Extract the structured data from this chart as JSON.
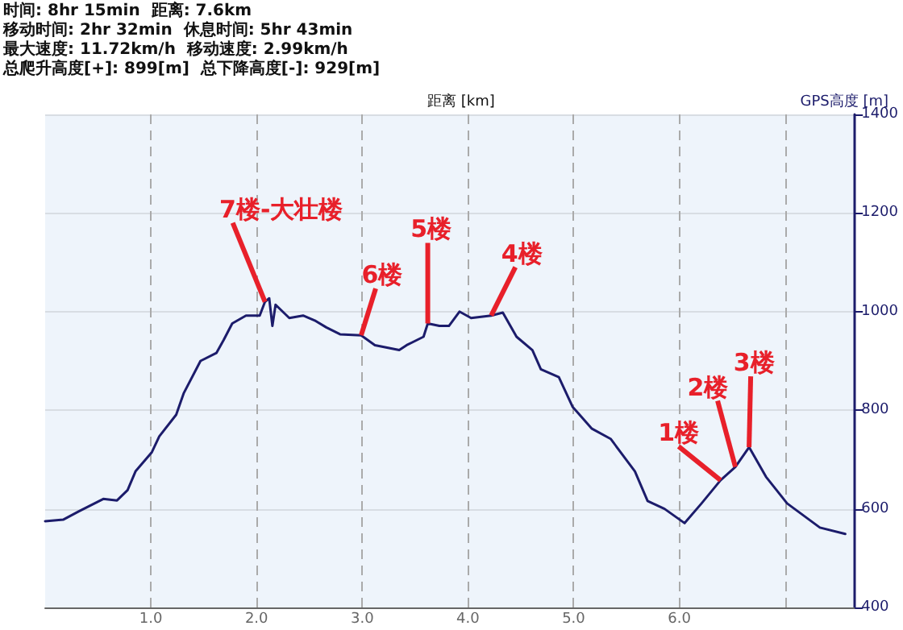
{
  "chart_data": {
    "type": "line",
    "xlabel": "距离 [km]",
    "ylabel": "GPS高度 [m]",
    "annotations": [
      "时间: 8hr 15min  距离: 7.6km",
      "移动时间: 2hr 32min  休息时间: 5hr 43min",
      "最大速度: 11.72km/h  移动速度: 2.99km/h",
      "总爬升高度[+]: 899[m]  总下降高度[-]: 929[m]",
      {
        "text": "7楼-大壮楼",
        "x": 2.08,
        "y": 1020
      },
      {
        "text": "6楼",
        "x": 2.99,
        "y": 952
      },
      {
        "text": "5楼",
        "x": 3.62,
        "y": 976
      },
      {
        "text": "4楼",
        "x": 4.22,
        "y": 992
      },
      {
        "text": "1楼",
        "x": 6.39,
        "y": 658
      },
      {
        "text": "2楼",
        "x": 6.53,
        "y": 685
      },
      {
        "text": "3楼",
        "x": 6.66,
        "y": 725
      }
    ],
    "x": [
      0,
      0.17,
      0.32,
      0.55,
      0.68,
      0.78,
      0.855,
      1.01,
      1.08,
      1.24,
      1.31,
      1.47,
      1.62,
      1.69,
      1.77,
      1.9,
      2.03,
      2.08,
      2.12,
      2.15,
      2.18,
      2.31,
      2.44,
      2.56,
      2.66,
      2.79,
      2.99,
      3.12,
      3.35,
      3.42,
      3.58,
      3.62,
      3.73,
      3.82,
      3.92,
      4.03,
      4.22,
      4.33,
      4.46,
      4.61,
      4.69,
      4.86,
      4.99,
      5.17,
      5.35,
      5.58,
      5.7,
      5.86,
      6.05,
      6.21,
      6.39,
      6.53,
      6.66,
      6.82,
      7.02,
      7.33,
      7.57
    ],
    "series": [
      {
        "color": "#1c1c6b",
        "values": [
          575,
          578,
          595,
          620,
          617,
          638,
          676,
          715,
          747,
          791,
          834,
          900,
          916,
          943,
          976,
          992,
          992,
          1020,
          1027,
          971,
          1014,
          987,
          992,
          981,
          968,
          954,
          952,
          932,
          922,
          932,
          949,
          976,
          971,
          971,
          1000,
          987,
          992,
          998,
          949,
          922,
          883,
          867,
          807,
          763,
          742,
          676,
          616,
          600,
          571,
          611,
          658,
          685,
          725,
          665,
          611,
          562,
          549
        ]
      }
    ],
    "xlim": [
      0,
      7.66
    ],
    "ylim": [
      400,
      1400
    ],
    "xticks": [
      {
        "value": 1,
        "label": "1.0"
      },
      {
        "value": 2,
        "label": "2.0"
      },
      {
        "value": 3,
        "label": "3.0"
      },
      {
        "value": 4,
        "label": "4.0"
      },
      {
        "value": 5,
        "label": "5.0"
      },
      {
        "value": 6,
        "label": "6.0"
      },
      {
        "value": 7,
        "label": null
      }
    ],
    "yticks": [
      400,
      600,
      800,
      1000,
      1200,
      1400
    ],
    "grid": true,
    "marker": "none",
    "line_style": "solid"
  }
}
